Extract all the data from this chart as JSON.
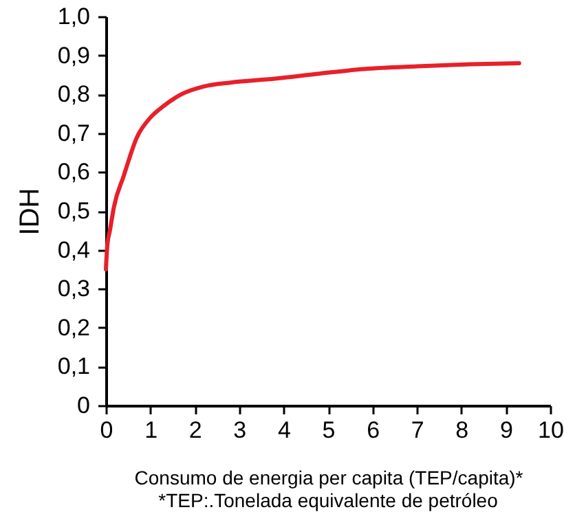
{
  "chart_data": {
    "type": "line",
    "xlabel": "Consumo de energia per capita (TEP/capita)*",
    "ylabel": "IDH",
    "annotations": [
      "*TEP:.Tonelada equivalente de petróleo"
    ],
    "series": [
      {
        "color": "#e8202a",
        "x": [
          0,
          0.03,
          0.09,
          0.18,
          0.4,
          0.7,
          1.0,
          1.3,
          1.7,
          2.2,
          2.8,
          3.8,
          4.8,
          5.8,
          7,
          8.2,
          9.3
        ],
        "values": [
          0.35,
          0.41,
          0.45,
          0.51,
          0.59,
          0.69,
          0.74,
          0.77,
          0.8,
          0.82,
          0.83,
          0.84,
          0.853,
          0.865,
          0.872,
          0.877,
          0.88
        ]
      }
    ],
    "xlim": [
      0,
      10
    ],
    "ylim": [
      0,
      1
    ],
    "xticks": [
      0,
      1,
      2,
      3,
      4,
      5,
      6,
      7,
      8,
      9,
      10
    ],
    "yticks": [
      0,
      {
        "value": 0.1,
        "label": "0,1"
      },
      {
        "value": 0.2,
        "label": "0,2"
      },
      {
        "value": 0.3,
        "label": "0,3"
      },
      {
        "value": 0.4,
        "label": "0,4"
      },
      {
        "value": 0.5,
        "label": "0,5"
      },
      {
        "value": 0.6,
        "label": "0,6"
      },
      {
        "value": 0.7,
        "label": "0,7"
      },
      {
        "value": 0.8,
        "label": "0,8"
      },
      {
        "value": 0.9,
        "label": "0,9"
      },
      {
        "value": 1,
        "label": "1,0"
      }
    ],
    "grid": false,
    "marker": "none",
    "line_style": "solid"
  }
}
